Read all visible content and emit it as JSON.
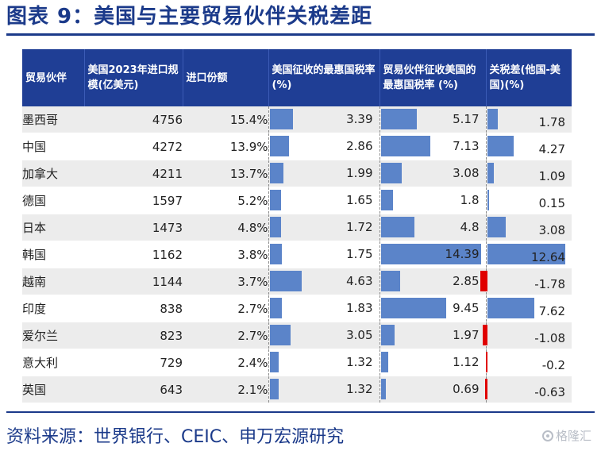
{
  "title": "图表 9：美国与主要贸易伙伴关税差距",
  "source": "资料来源：世界银行、CEIC、申万宏源研究",
  "watermark": "格隆汇",
  "table": {
    "headers": [
      "贸易伙伴",
      "美国2023年进口规模(亿美元)",
      "进口份额",
      "美国征收的最惠国税率 (%)",
      "贸易伙伴征收美国的最惠国税率 (%)",
      "关税差(他国-美国)(%)"
    ],
    "rows": [
      {
        "partner": "墨西哥",
        "imports": "4756",
        "share": "15.4%",
        "us_rate": "3.39",
        "partner_rate": "5.17",
        "diff": "1.78"
      },
      {
        "partner": "中国",
        "imports": "4272",
        "share": "13.9%",
        "us_rate": "2.86",
        "partner_rate": "7.13",
        "diff": "4.27"
      },
      {
        "partner": "加拿大",
        "imports": "4211",
        "share": "13.7%",
        "us_rate": "1.99",
        "partner_rate": "3.08",
        "diff": "1.09"
      },
      {
        "partner": "德国",
        "imports": "1597",
        "share": "5.2%",
        "us_rate": "1.65",
        "partner_rate": "1.8",
        "diff": "0.15"
      },
      {
        "partner": "日本",
        "imports": "1473",
        "share": "4.8%",
        "us_rate": "1.72",
        "partner_rate": "4.8",
        "diff": "3.08"
      },
      {
        "partner": "韩国",
        "imports": "1162",
        "share": "3.8%",
        "us_rate": "1.75",
        "partner_rate": "14.39",
        "diff": "12.64"
      },
      {
        "partner": "越南",
        "imports": "1144",
        "share": "3.7%",
        "us_rate": "4.63",
        "partner_rate": "2.85",
        "diff": "-1.78"
      },
      {
        "partner": "印度",
        "imports": "838",
        "share": "2.7%",
        "us_rate": "1.83",
        "partner_rate": "9.45",
        "diff": "7.62"
      },
      {
        "partner": "爱尔兰",
        "imports": "823",
        "share": "2.7%",
        "us_rate": "3.05",
        "partner_rate": "1.97",
        "diff": "-1.08"
      },
      {
        "partner": "意大利",
        "imports": "729",
        "share": "2.4%",
        "us_rate": "1.32",
        "partner_rate": "1.12",
        "diff": "-0.2"
      },
      {
        "partner": "英国",
        "imports": "643",
        "share": "2.1%",
        "us_rate": "1.32",
        "partner_rate": "0.69",
        "diff": "-0.63"
      }
    ]
  },
  "colors": {
    "header_bg": "#1f3e95",
    "title": "#1b3a8a",
    "bar_positive": "#5b84c9",
    "bar_negative": "#e00000"
  }
}
